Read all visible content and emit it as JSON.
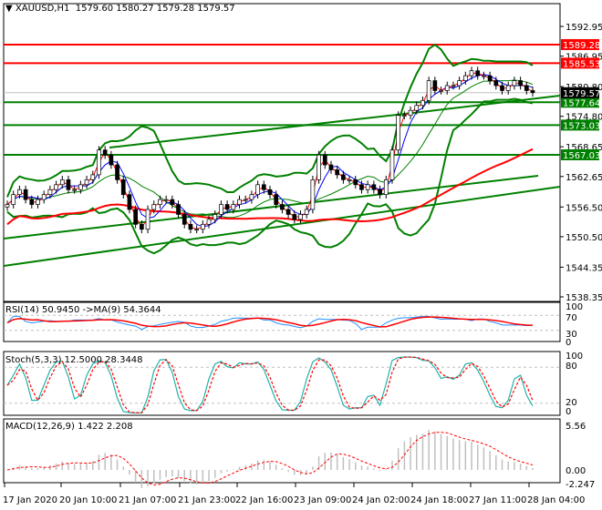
{
  "header": {
    "symbol": "XAUUSD,H1",
    "ohlc": "1579.60 1580.27 1579.28 1579.57"
  },
  "chart_data": {
    "type": "candlestick",
    "symbol": "XAUUSD",
    "timeframe": "H1",
    "ylim": [
      1538.35,
      1592.95
    ],
    "price_ticks": [
      "1592.95",
      "1586.95",
      "1580.80",
      "1574.80",
      "1568.65",
      "1562.65",
      "1556.50",
      "1550.50",
      "1544.35",
      "1538.35"
    ],
    "time_ticks": [
      "17 Jan 2020",
      "20 Jan 10:00",
      "21 Jan 07:00",
      "21 Jan 23:00",
      "22 Jan 16:00",
      "23 Jan 09:00",
      "24 Jan 02:00",
      "24 Jan 18:00",
      "27 Jan 11:00",
      "28 Jan 04:00"
    ],
    "close": [
      1557,
      1559,
      1560,
      1558,
      1557,
      1558,
      1559,
      1560,
      1561,
      1562,
      1560,
      1560,
      1561,
      1562,
      1563,
      1568,
      1567,
      1565,
      1562,
      1559,
      1556,
      1553,
      1552,
      1556,
      1557,
      1558,
      1558,
      1557,
      1555,
      1553,
      1552,
      1552,
      1553,
      1554,
      1555,
      1557,
      1556,
      1557,
      1558,
      1558,
      1559,
      1561,
      1560,
      1559,
      1557,
      1556,
      1555,
      1554,
      1555,
      1556,
      1562,
      1567,
      1565,
      1564,
      1563,
      1562,
      1562,
      1561,
      1560,
      1561,
      1560,
      1559,
      1562,
      1568,
      1575,
      1575,
      1576,
      1577,
      1578,
      1582,
      1580,
      1580,
      1581,
      1581,
      1582,
      1583,
      1584,
      1583,
      1583,
      1582,
      1581,
      1580,
      1581,
      1582,
      1581,
      1580,
      1579.57
    ],
    "horizontal_levels": [
      {
        "price": 1589.28,
        "label": "1589.28",
        "color": "#ff0000"
      },
      {
        "price": 1585.53,
        "label": "1585.53",
        "color": "#ff0000"
      },
      {
        "price": 1577.64,
        "label": "1577.64",
        "color": "#008000"
      },
      {
        "price": 1573.03,
        "label": "1573.03",
        "color": "#008000"
      },
      {
        "price": 1567.03,
        "label": "1567.03",
        "color": "#008000"
      }
    ],
    "current_price": {
      "price": 1579.57,
      "label": "1579.57"
    },
    "indicators": {
      "rsi": {
        "label": "RSI(14) 50.9450  ->MA(9) 54.3644",
        "levels": [
          "100",
          "70",
          "30",
          "0"
        ]
      },
      "stoch": {
        "label": "Stoch(5,3,3) 12.5000 28.3448",
        "levels": [
          "100",
          "80",
          "20",
          "0"
        ]
      },
      "macd": {
        "label": "MACD(12,26,9) 1.422 2.208",
        "levels": [
          "5.56",
          "0.00",
          "-2.247"
        ]
      }
    },
    "colors": {
      "bull": "#ffffff",
      "bear": "#000000",
      "bands": "#008000",
      "ma_fast": "#ff0000",
      "ma_blue": "#0000ff",
      "rsi": "#1e90ff",
      "signal": "#ff0000",
      "stoch": "#20b2aa",
      "macd_hist": "#c0c0c0"
    }
  }
}
